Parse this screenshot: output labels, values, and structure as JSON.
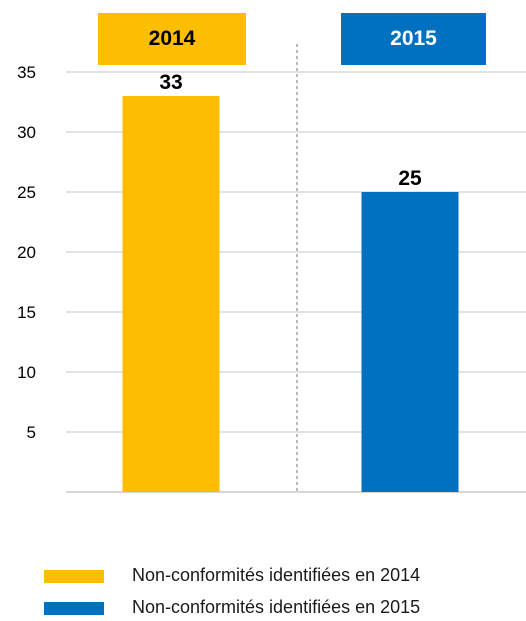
{
  "chart_data": {
    "type": "bar",
    "categories": [
      "2014",
      "2015"
    ],
    "values": [
      33,
      25
    ],
    "data_labels": [
      "33",
      "25"
    ],
    "colors": [
      "#fdbd00",
      "#0070c0"
    ],
    "y_ticks": [
      "5",
      "10",
      "15",
      "20",
      "25",
      "30",
      "35"
    ],
    "y_tick_values": [
      5,
      10,
      15,
      20,
      25,
      30,
      35
    ],
    "ylim": [
      0,
      35
    ],
    "title": "",
    "xlabel": "",
    "ylabel": "",
    "grid": true,
    "legend_position": "bottom",
    "legend": [
      {
        "label": "Non-conformités identifiées en 2014",
        "color": "#fdbd00"
      },
      {
        "label": "Non-conformités identifiées en 2015",
        "color": "#0070c0"
      }
    ]
  }
}
